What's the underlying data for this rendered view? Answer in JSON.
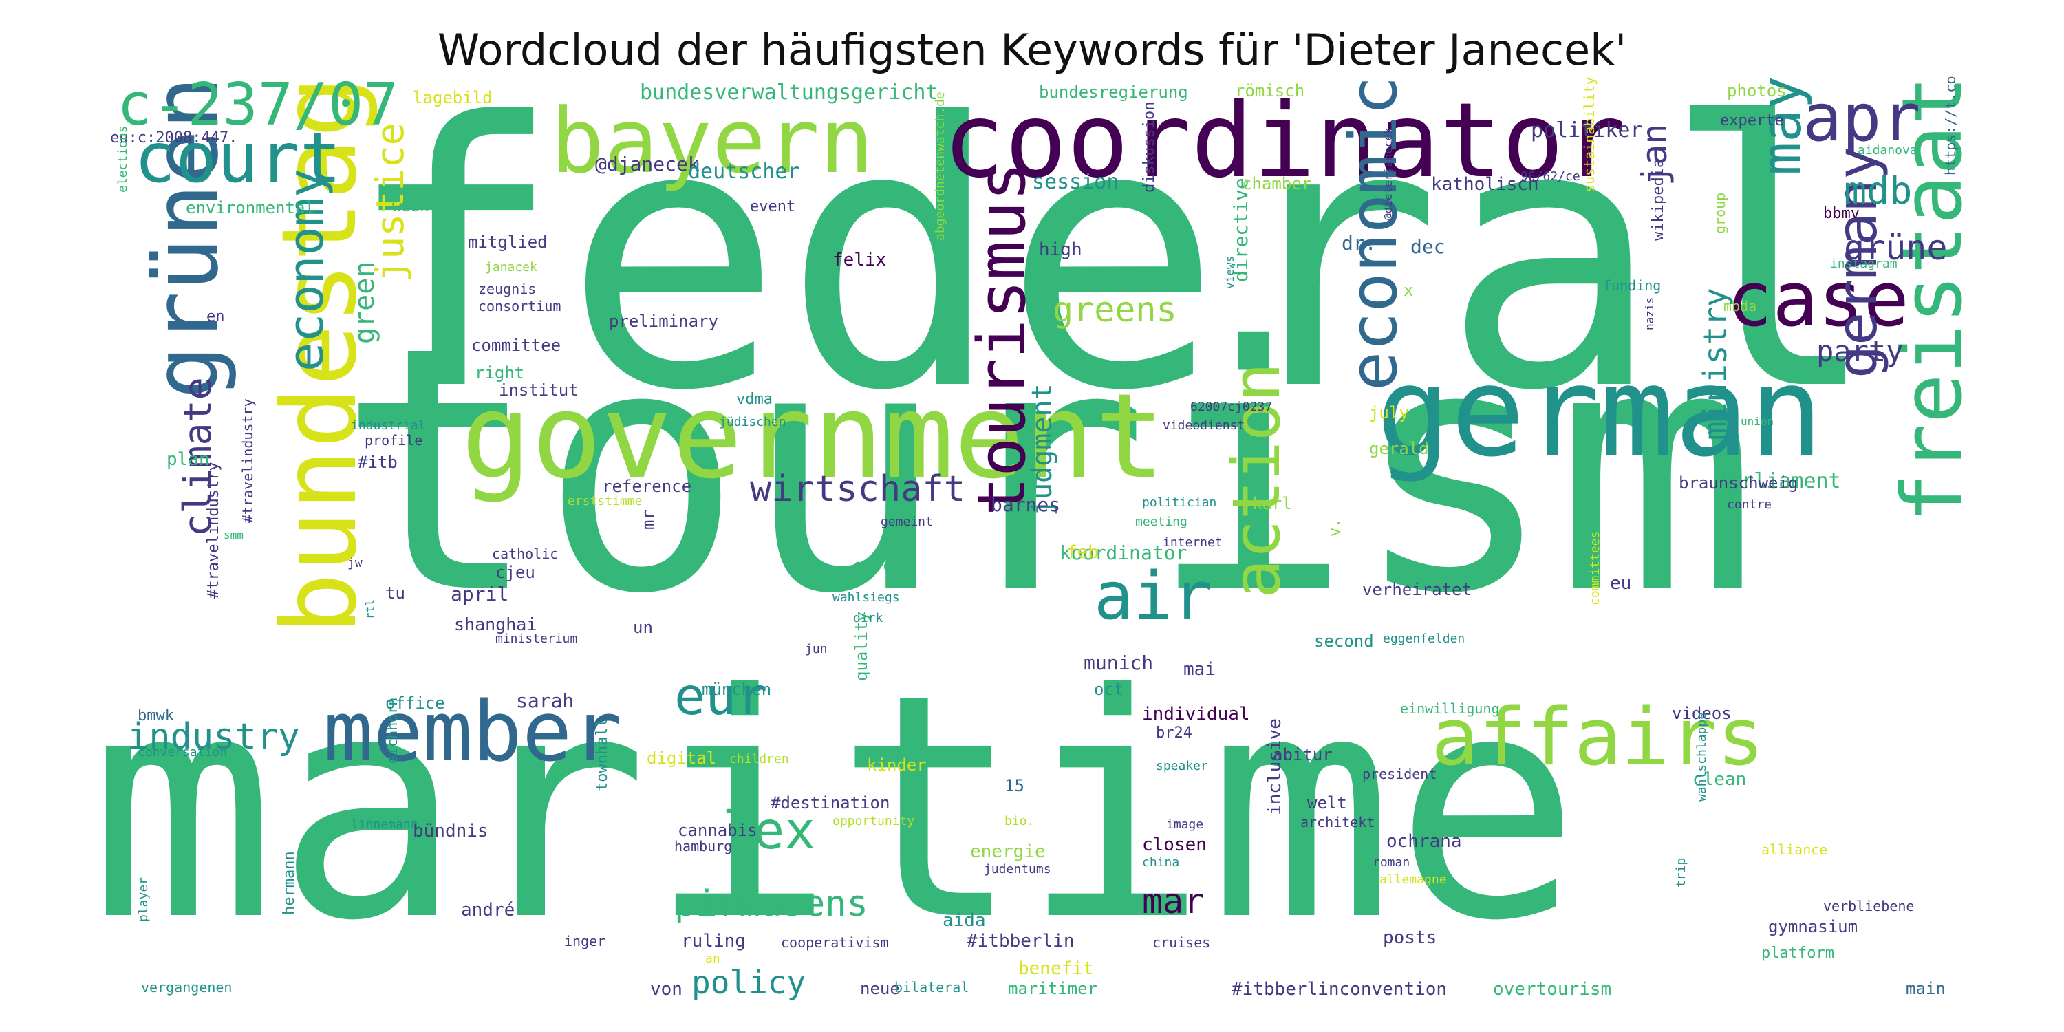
{
  "title": "Wordcloud der häufigsten Keywords für 'Dieter Janecek'",
  "palette": {
    "green": "#35b779",
    "lime": "#90d743",
    "yellow": "#d8e219",
    "teal": "#21918c",
    "blue": "#31688e",
    "indigo": "#443983",
    "purple": "#440154",
    "light": "#b5de2b"
  },
  "words": [
    {
      "text": "federal",
      "color": "green"
    },
    {
      "text": "tourism",
      "color": "green"
    },
    {
      "text": "maritime",
      "color": "green"
    },
    {
      "text": "government",
      "color": "lime"
    },
    {
      "text": "coordinator",
      "color": "purple"
    },
    {
      "text": "german",
      "color": "teal"
    },
    {
      "text": "bundestag",
      "color": "yellow"
    },
    {
      "text": "grünen",
      "color": "blue"
    },
    {
      "text": "bayern",
      "color": "lime"
    },
    {
      "text": "court",
      "color": "teal"
    },
    {
      "text": "c-237/07",
      "color": "green"
    },
    {
      "text": "member",
      "color": "blue"
    },
    {
      "text": "affairs",
      "color": "lime"
    },
    {
      "text": "freistaat",
      "color": "green"
    },
    {
      "text": "case",
      "color": "purple"
    },
    {
      "text": "apr",
      "color": "indigo"
    },
    {
      "text": "may",
      "color": "teal"
    },
    {
      "text": "economic",
      "color": "blue"
    },
    {
      "text": "air",
      "color": "teal"
    },
    {
      "text": "tourismus",
      "color": "purple"
    },
    {
      "text": "action",
      "color": "lime"
    },
    {
      "text": "economy",
      "color": "teal"
    },
    {
      "text": "justice",
      "color": "yellow"
    },
    {
      "text": "lex",
      "color": "green"
    },
    {
      "text": "eur",
      "color": "teal"
    },
    {
      "text": "germany",
      "color": "indigo"
    },
    {
      "text": "climate",
      "color": "indigo"
    },
    {
      "text": "industry",
      "color": "teal"
    },
    {
      "text": "pirmasens",
      "color": "green"
    },
    {
      "text": "policy",
      "color": "teal"
    },
    {
      "text": "wirtschaft",
      "color": "indigo"
    },
    {
      "text": "mar",
      "color": "purple"
    },
    {
      "text": "greens",
      "color": "lime"
    },
    {
      "text": "mdb",
      "color": "teal"
    },
    {
      "text": "grüne",
      "color": "indigo"
    },
    {
      "text": "party",
      "color": "indigo"
    },
    {
      "text": "jan",
      "color": "indigo"
    },
    {
      "text": "green",
      "color": "green"
    },
    {
      "text": "judgment",
      "color": "teal"
    },
    {
      "text": "ministry",
      "color": "teal"
    },
    {
      "text": "bundesverwaltungsgericht",
      "color": "green"
    },
    {
      "text": "politiker",
      "color": "indigo"
    },
    {
      "text": "@djanecek",
      "color": "indigo"
    },
    {
      "text": "deutscher",
      "color": "teal"
    },
    {
      "text": "session",
      "color": "teal"
    },
    {
      "text": "koordinator",
      "color": "green"
    },
    {
      "text": "parliament",
      "color": "green"
    },
    {
      "text": "directive",
      "color": "green"
    },
    {
      "text": "april",
      "color": "indigo"
    },
    {
      "text": "shanghai",
      "color": "indigo"
    },
    {
      "text": "sarah",
      "color": "indigo"
    },
    {
      "text": "munich",
      "color": "indigo"
    },
    {
      "text": "mai",
      "color": "indigo"
    },
    {
      "text": "barnes",
      "color": "indigo"
    },
    {
      "text": "dr.",
      "color": "blue"
    },
    {
      "text": "dec",
      "color": "blue"
    },
    {
      "text": "lagebild",
      "color": "yellow"
    },
    {
      "text": "bundesregierung",
      "color": "green"
    },
    {
      "text": "römisch",
      "color": "lime"
    },
    {
      "text": "photos",
      "color": "lime"
    },
    {
      "text": "https://t.co",
      "color": "blue"
    },
    {
      "text": "eu:c:2008:447.",
      "color": "indigo"
    },
    {
      "text": "experte",
      "color": "indigo"
    },
    {
      "text": "aidanova",
      "color": "green"
    },
    {
      "text": "96/62/ce",
      "color": "indigo"
    },
    {
      "text": "bbmv",
      "color": "purple"
    },
    {
      "text": "katholisch",
      "color": "indigo"
    },
    {
      "text": "chamber",
      "color": "lime"
    },
    {
      "text": "week",
      "color": "green"
    },
    {
      "text": "event",
      "color": "indigo"
    },
    {
      "text": "environmental",
      "color": "green"
    },
    {
      "text": "elections",
      "color": "green"
    },
    {
      "text": "mitglied",
      "color": "indigo"
    },
    {
      "text": "high",
      "color": "indigo"
    },
    {
      "text": "felix",
      "color": "purple"
    },
    {
      "text": "diskussion",
      "color": "indigo"
    },
    {
      "text": "sustainability",
      "color": "yellow"
    },
    {
      "text": "instagram",
      "color": "green"
    },
    {
      "text": "funding",
      "color": "teal"
    },
    {
      "text": "group",
      "color": "lime"
    },
    {
      "text": "wikipedia",
      "color": "indigo"
    },
    {
      "text": "janacek",
      "color": "lime"
    },
    {
      "text": "zeugnis",
      "color": "indigo"
    },
    {
      "text": "consortium",
      "color": "indigo"
    },
    {
      "text": "preliminary",
      "color": "indigo"
    },
    {
      "text": "en",
      "color": "indigo"
    },
    {
      "text": "committee",
      "color": "indigo"
    },
    {
      "text": "right",
      "color": "green"
    },
    {
      "text": "institut",
      "color": "indigo"
    },
    {
      "text": "vdma",
      "color": "teal"
    },
    {
      "text": "jüdischen",
      "color": "teal"
    },
    {
      "text": "abgeordnetenwatch.de",
      "color": "lime"
    },
    {
      "text": "@dieterjanecek",
      "color": "indigo"
    },
    {
      "text": "views",
      "color": "teal"
    },
    {
      "text": "nazis",
      "color": "indigo"
    },
    {
      "text": "mbda",
      "color": "lime"
    },
    {
      "text": "union",
      "color": "green"
    },
    {
      "text": "x",
      "color": "lime"
    },
    {
      "text": "plan",
      "color": "green"
    },
    {
      "text": "industrial",
      "color": "teal"
    },
    {
      "text": "profile",
      "color": "indigo"
    },
    {
      "text": "#itb",
      "color": "indigo"
    },
    {
      "text": "62007cj0237",
      "color": "indigo"
    },
    {
      "text": "videodienst",
      "color": "indigo"
    },
    {
      "text": "july",
      "color": "yellow"
    },
    {
      "text": "gerald",
      "color": "lime"
    },
    {
      "text": "reference",
      "color": "indigo"
    },
    {
      "text": "erststimme",
      "color": "light"
    },
    {
      "text": "karl",
      "color": "lime"
    },
    {
      "text": "braunschweig",
      "color": "indigo"
    },
    {
      "text": "politician",
      "color": "teal"
    },
    {
      "text": "meeting",
      "color": "green"
    },
    {
      "text": "contre",
      "color": "indigo"
    },
    {
      "text": "smm",
      "color": "green"
    },
    {
      "text": "#travelindustry",
      "color": "indigo"
    },
    {
      "text": "catholic",
      "color": "indigo"
    },
    {
      "text": "cjeu",
      "color": "indigo"
    },
    {
      "text": "mr",
      "color": "indigo"
    },
    {
      "text": "gemeint",
      "color": "indigo"
    },
    {
      "text": "internet",
      "color": "indigo"
    },
    {
      "text": "v.",
      "color": "lime"
    },
    {
      "text": "jw",
      "color": "indigo"
    },
    {
      "text": "tu",
      "color": "indigo"
    },
    {
      "text": "feb",
      "color": "yellow"
    },
    {
      "text": "europe",
      "color": "green"
    },
    {
      "text": "wahlsiegs",
      "color": "teal"
    },
    {
      "text": "dirk",
      "color": "teal"
    },
    {
      "text": "verheiratet",
      "color": "indigo"
    },
    {
      "text": "committees",
      "color": "yellow"
    },
    {
      "text": "eu",
      "color": "indigo"
    },
    {
      "text": "un",
      "color": "indigo"
    },
    {
      "text": "ministerium",
      "color": "indigo"
    },
    {
      "text": "jun",
      "color": "indigo"
    },
    {
      "text": "second",
      "color": "teal"
    },
    {
      "text": "eggenfelden",
      "color": "teal"
    },
    {
      "text": "rtl",
      "color": "teal"
    },
    {
      "text": "#travelindustry",
      "color": "indigo"
    },
    {
      "text": "münchen",
      "color": "teal"
    },
    {
      "text": "oct",
      "color": "teal"
    },
    {
      "text": "office",
      "color": "teal"
    },
    {
      "text": "bmwk",
      "color": "blue"
    },
    {
      "text": "conversation",
      "color": "teal"
    },
    {
      "text": "quality",
      "color": "green"
    },
    {
      "text": "individual",
      "color": "purple"
    },
    {
      "text": "br24",
      "color": "indigo"
    },
    {
      "text": "einwilligung",
      "color": "green"
    },
    {
      "text": "videos",
      "color": "indigo"
    },
    {
      "text": "digital",
      "color": "yellow"
    },
    {
      "text": "children",
      "color": "light"
    },
    {
      "text": "kinder",
      "color": "yellow"
    },
    {
      "text": "speaker",
      "color": "teal"
    },
    {
      "text": "abitur",
      "color": "indigo"
    },
    {
      "text": "president",
      "color": "indigo"
    },
    {
      "text": "clean",
      "color": "green"
    },
    {
      "text": "15",
      "color": "blue"
    },
    {
      "text": "#destination",
      "color": "indigo"
    },
    {
      "text": "opportunity",
      "color": "light"
    },
    {
      "text": "bio.",
      "color": "light"
    },
    {
      "text": "image",
      "color": "indigo"
    },
    {
      "text": "welt",
      "color": "indigo"
    },
    {
      "text": "architekt",
      "color": "indigo"
    },
    {
      "text": "eichhorn",
      "color": "teal"
    },
    {
      "text": "linnemann",
      "color": "teal"
    },
    {
      "text": "bündnis",
      "color": "indigo"
    },
    {
      "text": "townhall",
      "color": "teal"
    },
    {
      "text": "cannabis",
      "color": "indigo"
    },
    {
      "text": "hamburg",
      "color": "indigo"
    },
    {
      "text": "energie",
      "color": "lime"
    },
    {
      "text": "closen",
      "color": "purple"
    },
    {
      "text": "china",
      "color": "teal"
    },
    {
      "text": "judentums",
      "color": "indigo"
    },
    {
      "text": "ochrana",
      "color": "indigo"
    },
    {
      "text": "roman",
      "color": "indigo"
    },
    {
      "text": "allemagne",
      "color": "yellow"
    },
    {
      "text": "alliance",
      "color": "yellow"
    },
    {
      "text": "trip",
      "color": "teal"
    },
    {
      "text": "wahlschlappe",
      "color": "teal"
    },
    {
      "text": "inclusive",
      "color": "indigo"
    },
    {
      "text": "verbliebene",
      "color": "indigo"
    },
    {
      "text": "gymnasium",
      "color": "indigo"
    },
    {
      "text": "posts",
      "color": "indigo"
    },
    {
      "text": "andré",
      "color": "indigo"
    },
    {
      "text": "ruling",
      "color": "indigo"
    },
    {
      "text": "aida",
      "color": "teal"
    },
    {
      "text": "#itbberlin",
      "color": "indigo"
    },
    {
      "text": "benefit",
      "color": "yellow"
    },
    {
      "text": "cruises",
      "color": "indigo"
    },
    {
      "text": "platform",
      "color": "green"
    },
    {
      "text": "hermann",
      "color": "teal"
    },
    {
      "text": "player",
      "color": "teal"
    },
    {
      "text": "inger",
      "color": "indigo"
    },
    {
      "text": "cooperativism",
      "color": "indigo"
    },
    {
      "text": "an",
      "color": "yellow"
    },
    {
      "text": "von",
      "color": "indigo"
    },
    {
      "text": "neue",
      "color": "indigo"
    },
    {
      "text": "bilateral",
      "color": "teal"
    },
    {
      "text": "maritimer",
      "color": "green"
    },
    {
      "text": "#itbberlinconvention",
      "color": "indigo"
    },
    {
      "text": "overtourism",
      "color": "green"
    },
    {
      "text": "main",
      "color": "blue"
    },
    {
      "text": "vergangenen",
      "color": "teal"
    }
  ]
}
